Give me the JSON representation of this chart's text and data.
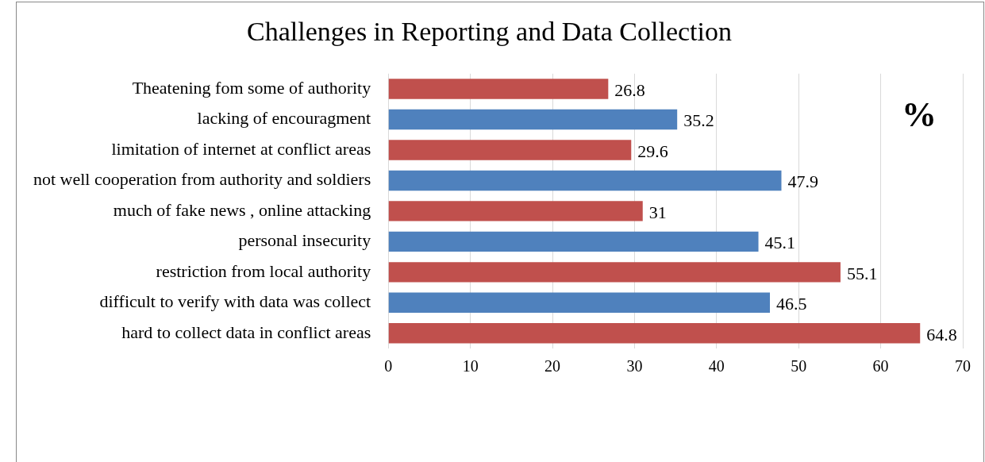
{
  "chart_data": {
    "type": "bar",
    "orientation": "horizontal",
    "title": "Challenges in Reporting and Data Collection",
    "categories": [
      "Theatening fom some of authority",
      "lacking of encouragment",
      "limitation of internet at conflict areas",
      "not well cooperation from authority and soldiers",
      "much of fake news , online attacking",
      "personal insecurity",
      "restriction from local authority",
      "difficult to verify with data was collect",
      "hard to collect data in conflict areas"
    ],
    "values": [
      26.8,
      35.2,
      29.6,
      47.9,
      31,
      45.1,
      55.1,
      46.5,
      64.8
    ],
    "colors": [
      "#c0504d",
      "#4f81bd",
      "#c0504d",
      "#4f81bd",
      "#c0504d",
      "#4f81bd",
      "#c0504d",
      "#4f81bd",
      "#c0504d"
    ],
    "xlim": [
      0,
      70
    ],
    "xticks": [
      0,
      10,
      20,
      30,
      40,
      50,
      60,
      70
    ],
    "grid": "x",
    "data_labels": true,
    "annotations": [
      "%"
    ]
  }
}
